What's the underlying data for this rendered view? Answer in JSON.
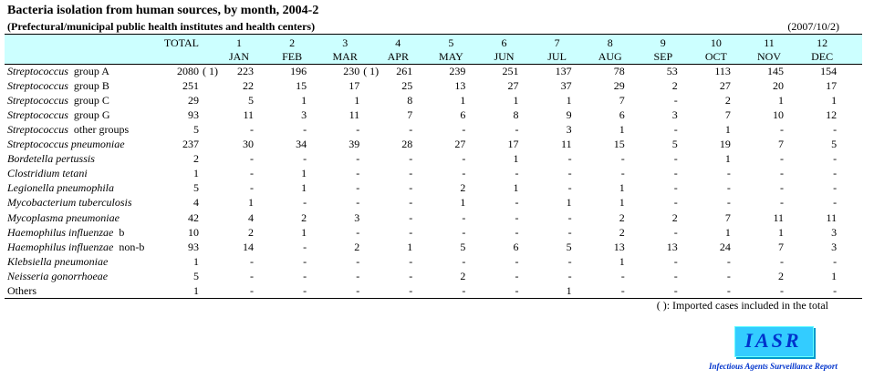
{
  "header": {
    "title": "Bacteria isolation from human sources, by month, 2004-2",
    "subtitle": "(Prefectural/municipal public health institutes and health centers)",
    "date": "(2007/10/2)"
  },
  "table": {
    "total_label": "TOTAL",
    "months": [
      {
        "number": "1",
        "name": "JAN"
      },
      {
        "number": "2",
        "name": "FEB"
      },
      {
        "number": "3",
        "name": "MAR"
      },
      {
        "number": "4",
        "name": "APR"
      },
      {
        "number": "5",
        "name": "MAY"
      },
      {
        "number": "6",
        "name": "JUN"
      },
      {
        "number": "7",
        "name": "JUL"
      },
      {
        "number": "8",
        "name": "AUG"
      },
      {
        "number": "9",
        "name": "SEP"
      },
      {
        "number": "10",
        "name": "OCT"
      },
      {
        "number": "11",
        "name": "NOV"
      },
      {
        "number": "12",
        "name": "DEC"
      }
    ],
    "rows": [
      {
        "italic": "Streptococcus",
        "plain": "group A",
        "total": 2080,
        "imported": {
          "total": "( 1)",
          "mar": "( 1)"
        },
        "months": [
          223,
          196,
          230,
          261,
          239,
          251,
          137,
          78,
          53,
          113,
          145,
          154
        ]
      },
      {
        "italic": "Streptococcus",
        "plain": "group B",
        "total": 251,
        "months": [
          22,
          15,
          17,
          25,
          13,
          27,
          37,
          29,
          2,
          27,
          20,
          17
        ]
      },
      {
        "italic": "Streptococcus",
        "plain": "group C",
        "total": 29,
        "months": [
          5,
          1,
          1,
          8,
          1,
          1,
          1,
          7,
          "-",
          2,
          1,
          1
        ]
      },
      {
        "italic": "Streptococcus",
        "plain": "group G",
        "total": 93,
        "months": [
          11,
          3,
          11,
          7,
          6,
          8,
          9,
          6,
          3,
          7,
          10,
          12
        ]
      },
      {
        "italic": "Streptococcus",
        "plain": "other groups",
        "total": 5,
        "months": [
          "-",
          "-",
          "-",
          "-",
          "-",
          "-",
          3,
          1,
          "-",
          1,
          "-",
          "-"
        ]
      },
      {
        "italic": "Streptococcus pneumoniae",
        "total": 237,
        "months": [
          30,
          34,
          39,
          28,
          27,
          17,
          11,
          15,
          5,
          19,
          7,
          5
        ]
      },
      {
        "italic": "Bordetella pertussis",
        "total": 2,
        "months": [
          "-",
          "-",
          "-",
          "-",
          "-",
          1,
          "-",
          "-",
          "-",
          1,
          "-",
          "-"
        ]
      },
      {
        "italic": "Clostridium tetani",
        "total": 1,
        "months": [
          "-",
          1,
          "-",
          "-",
          "-",
          "-",
          "-",
          "-",
          "-",
          "-",
          "-",
          "-"
        ]
      },
      {
        "italic": "Legionella pneumophila",
        "total": 5,
        "months": [
          "-",
          1,
          "-",
          "-",
          2,
          1,
          "-",
          1,
          "-",
          "-",
          "-",
          "-"
        ]
      },
      {
        "italic": "Mycobacterium tuberculosis",
        "total": 4,
        "months": [
          1,
          "-",
          "-",
          "-",
          1,
          "-",
          1,
          1,
          "-",
          "-",
          "-",
          "-"
        ]
      },
      {
        "italic": "Mycoplasma pneumoniae",
        "total": 42,
        "months": [
          4,
          2,
          3,
          "-",
          "-",
          "-",
          "-",
          2,
          2,
          7,
          11,
          11
        ]
      },
      {
        "italic": "Haemophilus influenzae",
        "plain": "b",
        "total": 10,
        "months": [
          2,
          1,
          "-",
          "-",
          "-",
          "-",
          "-",
          2,
          "-",
          1,
          1,
          3
        ]
      },
      {
        "italic": "Haemophilus influenzae",
        "plain": "non-b",
        "total": 93,
        "months": [
          14,
          "-",
          2,
          1,
          5,
          6,
          5,
          13,
          13,
          24,
          7,
          3
        ]
      },
      {
        "italic": "Klebsiella pneumoniae",
        "total": 1,
        "months": [
          "-",
          "-",
          "-",
          "-",
          "-",
          "-",
          "-",
          1,
          "-",
          "-",
          "-",
          "-"
        ]
      },
      {
        "italic": "Neisseria gonorrhoeae",
        "total": 5,
        "months": [
          "-",
          "-",
          "-",
          "-",
          2,
          "-",
          "-",
          "-",
          "-",
          "-",
          2,
          1
        ]
      },
      {
        "plain": "Others",
        "total": 1,
        "months": [
          "-",
          "-",
          "-",
          "-",
          "-",
          "-",
          1,
          "-",
          "-",
          "-",
          "-",
          "-"
        ]
      }
    ],
    "footnote": "(  ): Imported cases included in the total"
  },
  "logo": {
    "mark": "IASR",
    "caption": "Infectious Agents Surveillance Report"
  }
}
